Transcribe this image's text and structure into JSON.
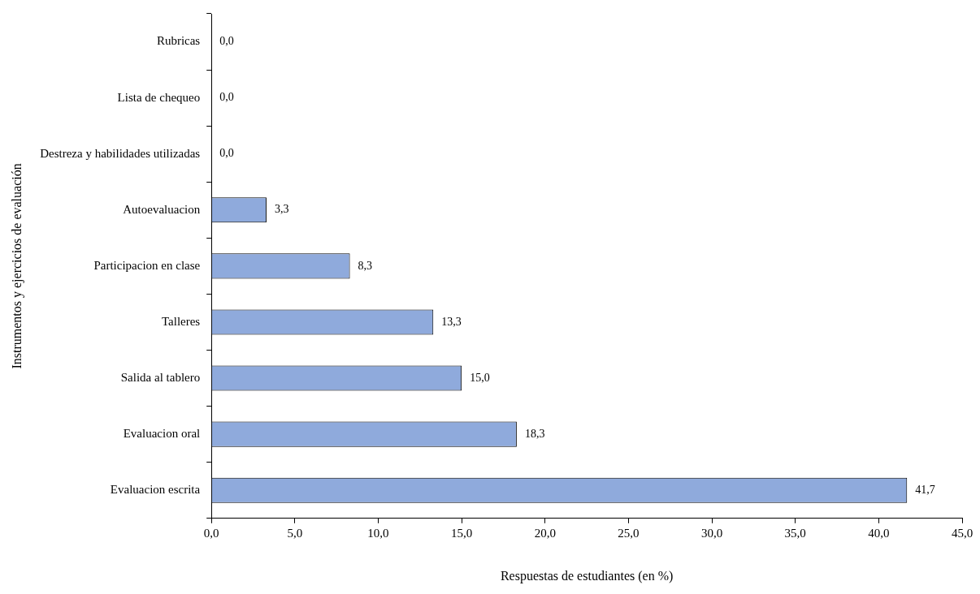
{
  "chart_data": {
    "type": "bar",
    "orientation": "horizontal",
    "xlabel": "Respuestas de estudiantes (en %)",
    "ylabel": "Instrumentos y ejercicios de evaluación",
    "categories": [
      "Rubricas",
      "Lista de chequeo",
      "Destreza y habilidades utilizadas",
      "Autoevaluacion",
      "Participacion en clase",
      "Talleres",
      "Salida al tablero",
      "Evaluacion oral",
      "Evaluacion escrita"
    ],
    "values": [
      0,
      0,
      0,
      3.3,
      8.3,
      13.3,
      15,
      18.3,
      41.7
    ],
    "value_labels": [
      "0,0",
      "0,0",
      "0,0",
      "3,3",
      "8,3",
      "13,3",
      "15,0",
      "18,3",
      "41,7"
    ],
    "color": "#8faadc",
    "xlim": [
      0,
      45
    ],
    "xticks": [
      {
        "value": 0,
        "label": "0,0"
      },
      {
        "value": 5,
        "label": "5,0"
      },
      {
        "value": 10,
        "label": "10,0"
      },
      {
        "value": 15,
        "label": "15,0"
      },
      {
        "value": 20,
        "label": "20,0"
      },
      {
        "value": 25,
        "label": "25,0"
      },
      {
        "value": 30,
        "label": "30,0"
      },
      {
        "value": 35,
        "label": "35,0"
      },
      {
        "value": 40,
        "label": "40,0"
      },
      {
        "value": 45,
        "label": "45,0"
      }
    ],
    "grid": false,
    "legend": false
  }
}
